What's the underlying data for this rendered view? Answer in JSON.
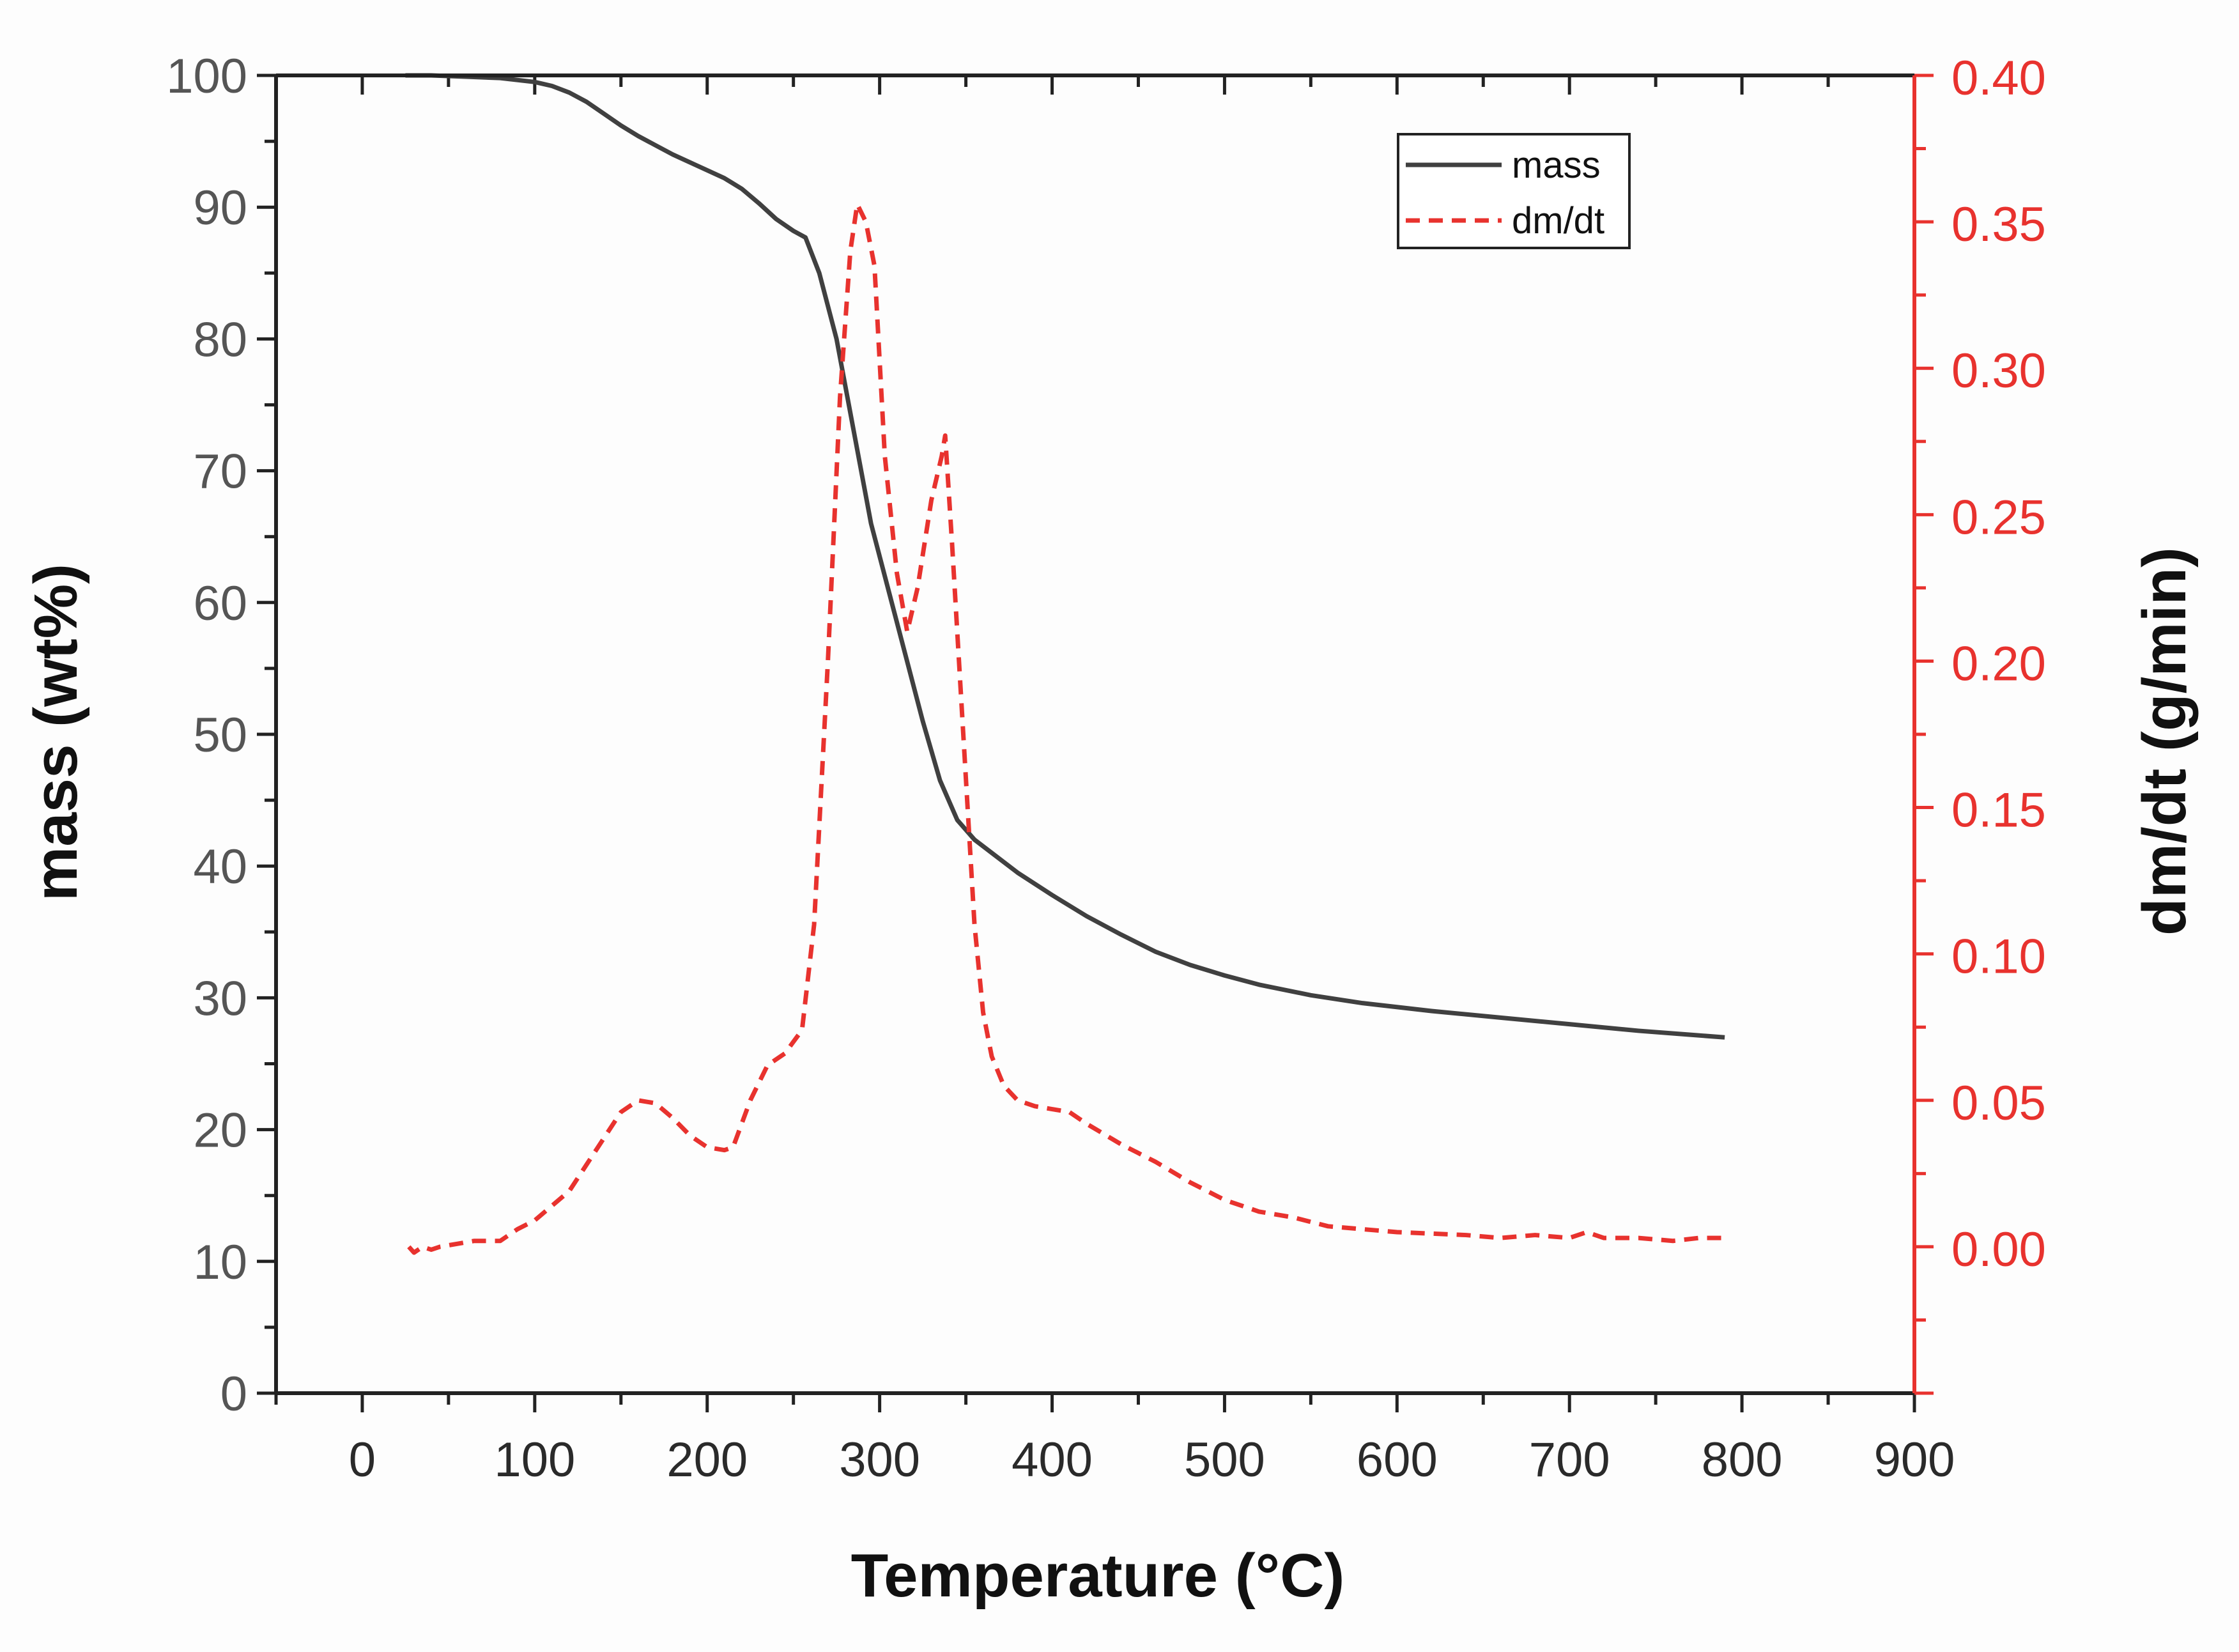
{
  "chart_data": {
    "type": "line",
    "title": "",
    "xlabel": "Temperature (°C)",
    "ylabel_left": "mass (wt%)",
    "ylabel_right": "dm/dt (g/min)",
    "xlim": [
      -50,
      900
    ],
    "ylim_left": [
      0,
      100
    ],
    "ylim_right": [
      -0.05,
      0.4
    ],
    "x_ticks": [
      0,
      100,
      200,
      300,
      400,
      500,
      600,
      700,
      800,
      900
    ],
    "y_left_ticks": [
      0,
      10,
      20,
      30,
      40,
      50,
      60,
      70,
      80,
      90,
      100
    ],
    "y_right_ticks": [
      0.0,
      0.05,
      0.1,
      0.15,
      0.2,
      0.25,
      0.3,
      0.35,
      0.4
    ],
    "x_tick_labels": [
      "0",
      "100",
      "200",
      "300",
      "400",
      "500",
      "600",
      "700",
      "800",
      "900"
    ],
    "y_left_tick_labels": [
      "0",
      "10",
      "20",
      "30",
      "40",
      "50",
      "60",
      "70",
      "80",
      "90",
      "100"
    ],
    "y_right_tick_labels": [
      "0.00",
      "0.05",
      "0.10",
      "0.15",
      "0.20",
      "0.25",
      "0.30",
      "0.35",
      "0.40"
    ],
    "grid": false,
    "legend_position": "top-right",
    "colors": {
      "mass": "#404040",
      "dmdt": "#e8322e",
      "right_axis": "#e8322e",
      "axis": "#222222"
    },
    "series": [
      {
        "name": "mass",
        "axis": "left",
        "style": "solid",
        "x": [
          25,
          40,
          60,
          80,
          100,
          110,
          120,
          130,
          140,
          150,
          160,
          170,
          180,
          190,
          200,
          210,
          220,
          230,
          240,
          250,
          257,
          265,
          275,
          285,
          295,
          305,
          315,
          325,
          335,
          345,
          355,
          365,
          380,
          400,
          420,
          440,
          460,
          480,
          500,
          520,
          550,
          580,
          620,
          660,
          700,
          740,
          770,
          790
        ],
        "y": [
          100,
          100,
          99.9,
          99.8,
          99.5,
          99.2,
          98.7,
          98.0,
          97.1,
          96.2,
          95.4,
          94.7,
          94.0,
          93.4,
          92.8,
          92.2,
          91.4,
          90.3,
          89.1,
          88.2,
          87.7,
          85.0,
          80.0,
          73.0,
          66.0,
          61.0,
          56.0,
          51.0,
          46.5,
          43.5,
          42.0,
          41.0,
          39.5,
          37.8,
          36.2,
          34.8,
          33.5,
          32.5,
          31.7,
          31.0,
          30.2,
          29.6,
          29.0,
          28.5,
          28.0,
          27.5,
          27.2,
          27.0
        ]
      },
      {
        "name": "dm/dt",
        "axis": "right",
        "style": "dashed",
        "x": [
          27,
          30,
          35,
          40,
          45,
          55,
          65,
          75,
          80,
          90,
          100,
          110,
          120,
          130,
          140,
          150,
          160,
          170,
          180,
          190,
          200,
          210,
          215,
          225,
          235,
          245,
          255,
          262,
          270,
          277,
          283,
          287,
          292,
          297,
          303,
          310,
          316,
          322,
          330,
          336,
          338,
          342,
          350,
          355,
          360,
          365,
          372,
          380,
          390,
          400,
          410,
          420,
          440,
          460,
          480,
          500,
          520,
          540,
          560,
          600,
          640,
          660,
          680,
          700,
          710,
          720,
          740,
          760,
          775,
          790
        ],
        "y": [
          0.0,
          -0.002,
          0.0,
          -0.001,
          0.0,
          0.001,
          0.002,
          0.002,
          0.002,
          0.006,
          0.009,
          0.014,
          0.019,
          0.028,
          0.037,
          0.046,
          0.05,
          0.049,
          0.044,
          0.038,
          0.034,
          0.033,
          0.034,
          0.05,
          0.062,
          0.066,
          0.074,
          0.11,
          0.2,
          0.29,
          0.34,
          0.356,
          0.35,
          0.335,
          0.27,
          0.23,
          0.21,
          0.225,
          0.255,
          0.27,
          0.277,
          0.24,
          0.16,
          0.11,
          0.08,
          0.065,
          0.055,
          0.05,
          0.048,
          0.047,
          0.046,
          0.042,
          0.035,
          0.029,
          0.022,
          0.016,
          0.012,
          0.01,
          0.007,
          0.005,
          0.004,
          0.003,
          0.004,
          0.003,
          0.005,
          0.003,
          0.003,
          0.002,
          0.003,
          0.003
        ]
      }
    ],
    "legend": [
      {
        "name": "mass",
        "style": "solid"
      },
      {
        "name": "dm/dt",
        "style": "dashed"
      }
    ]
  }
}
